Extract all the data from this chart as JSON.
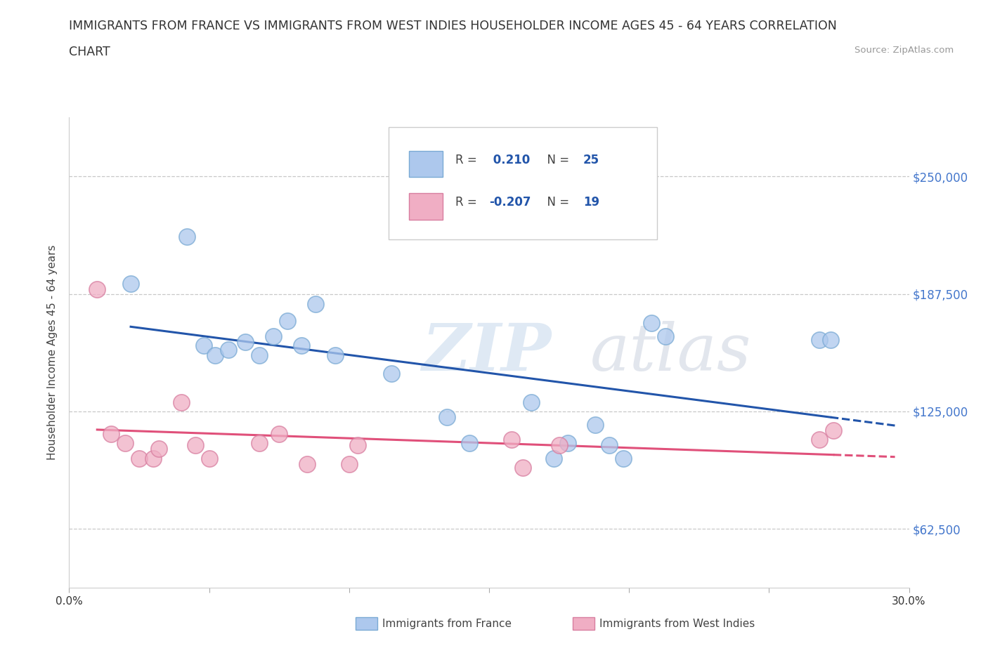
{
  "title_line1": "IMMIGRANTS FROM FRANCE VS IMMIGRANTS FROM WEST INDIES HOUSEHOLDER INCOME AGES 45 - 64 YEARS CORRELATION",
  "title_line2": "CHART",
  "source_text": "Source: ZipAtlas.com",
  "ylabel": "Householder Income Ages 45 - 64 years",
  "xlim": [
    0.0,
    0.3
  ],
  "ylim": [
    31250,
    281250
  ],
  "yticks": [
    62500,
    125000,
    187500,
    250000
  ],
  "ytick_labels": [
    "$62,500",
    "$125,000",
    "$187,500",
    "$250,000"
  ],
  "xticks": [
    0.0,
    0.05,
    0.1,
    0.15,
    0.2,
    0.25,
    0.3
  ],
  "france_r": 0.21,
  "france_n": 25,
  "wi_r": -0.207,
  "wi_n": 19,
  "france_color": "#adc8ed",
  "france_edge_color": "#7aaad4",
  "wi_color": "#f0aec4",
  "wi_edge_color": "#d87ea0",
  "france_line_color": "#2255aa",
  "wi_line_color": "#e0507a",
  "legend_france_label": "Immigrants from France",
  "legend_wi_label": "Immigrants from West Indies",
  "background_color": "#ffffff",
  "grid_color": "#bbbbbb",
  "france_x": [
    0.022,
    0.042,
    0.048,
    0.052,
    0.057,
    0.063,
    0.068,
    0.073,
    0.078,
    0.083,
    0.088,
    0.095,
    0.115,
    0.135,
    0.143,
    0.165,
    0.173,
    0.178,
    0.188,
    0.193,
    0.198,
    0.208,
    0.213,
    0.268,
    0.272
  ],
  "france_y": [
    193000,
    218000,
    160000,
    155000,
    158000,
    162000,
    155000,
    165000,
    173000,
    160000,
    182000,
    155000,
    145000,
    122000,
    108000,
    130000,
    100000,
    108000,
    118000,
    107000,
    100000,
    172000,
    165000,
    163000,
    163000
  ],
  "wi_x": [
    0.01,
    0.015,
    0.02,
    0.025,
    0.03,
    0.032,
    0.04,
    0.045,
    0.05,
    0.068,
    0.075,
    0.085,
    0.1,
    0.103,
    0.158,
    0.162,
    0.175,
    0.268,
    0.273
  ],
  "wi_y": [
    190000,
    113000,
    108000,
    100000,
    100000,
    105000,
    130000,
    107000,
    100000,
    108000,
    113000,
    97000,
    97000,
    107000,
    110000,
    95000,
    107000,
    110000,
    115000
  ],
  "watermark_text": "ZIPatlas"
}
